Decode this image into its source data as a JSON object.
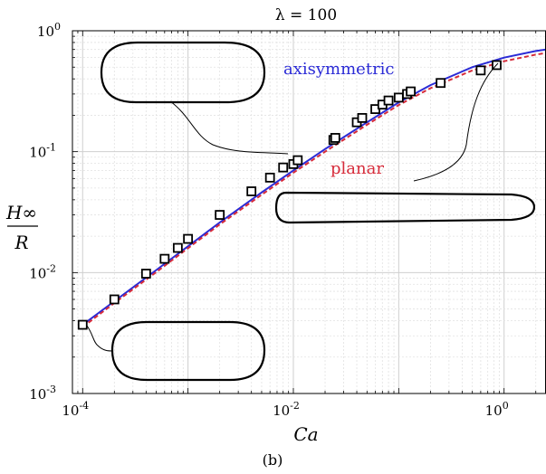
{
  "chart_data": {
    "type": "line",
    "title": "λ = 100",
    "xlabel": "Ca",
    "ylabel_num": "H∞",
    "ylabel_den": "R",
    "caption": "(b)",
    "xscale": "log",
    "yscale": "log",
    "xlim": [
      8e-05,
      2.5
    ],
    "ylim": [
      0.001,
      1.0
    ],
    "grid": true,
    "x_ticks": [
      {
        "value": 0.0001,
        "base": "10",
        "exp": "-4"
      },
      {
        "value": 0.01,
        "base": "10",
        "exp": "-2"
      },
      {
        "value": 1,
        "base": "10",
        "exp": "0"
      }
    ],
    "y_ticks": [
      {
        "value": 0.001,
        "base": "10",
        "exp": "-3"
      },
      {
        "value": 0.01,
        "base": "10",
        "exp": "-2"
      },
      {
        "value": 0.1,
        "base": "10",
        "exp": "-1"
      },
      {
        "value": 1,
        "base": "10",
        "exp": "0"
      }
    ],
    "series": [
      {
        "name": "axisymmetric",
        "style": "solid",
        "color": "#2b2bd6",
        "x": [
          0.0001,
          0.0002,
          0.0005,
          0.001,
          0.002,
          0.005,
          0.01,
          0.02,
          0.05,
          0.1,
          0.2,
          0.5,
          1,
          2,
          2.5
        ],
        "y": [
          0.0037,
          0.0058,
          0.0105,
          0.0165,
          0.026,
          0.046,
          0.07,
          0.105,
          0.175,
          0.255,
          0.355,
          0.5,
          0.6,
          0.68,
          0.7
        ]
      },
      {
        "name": "planar",
        "style": "dashed",
        "color": "#d62b3a",
        "x": [
          0.0001,
          0.0002,
          0.0005,
          0.001,
          0.002,
          0.005,
          0.01,
          0.02,
          0.05,
          0.1,
          0.2,
          0.5,
          1,
          2,
          2.5
        ],
        "y": [
          0.00355,
          0.0056,
          0.0101,
          0.0159,
          0.025,
          0.044,
          0.067,
          0.1,
          0.167,
          0.243,
          0.335,
          0.47,
          0.56,
          0.635,
          0.655
        ]
      }
    ],
    "markers": {
      "x": [
        0.0001,
        0.0002,
        0.0004,
        0.0006,
        0.0008,
        0.001,
        0.002,
        0.004,
        0.006,
        0.008,
        0.01,
        0.011,
        0.024,
        0.025,
        0.04,
        0.045,
        0.06,
        0.07,
        0.08,
        0.1,
        0.12,
        0.13,
        0.25,
        0.6,
        0.85
      ],
      "y": [
        0.0037,
        0.006,
        0.0098,
        0.013,
        0.016,
        0.019,
        0.03,
        0.047,
        0.061,
        0.074,
        0.079,
        0.085,
        0.125,
        0.13,
        0.175,
        0.19,
        0.225,
        0.245,
        0.265,
        0.28,
        0.3,
        0.315,
        0.37,
        0.47,
        0.52
      ]
    },
    "annotations": [
      {
        "text": "axisymmetric",
        "color": "#2b2bd6"
      },
      {
        "text": "planar",
        "color": "#d62b3a"
      }
    ]
  }
}
